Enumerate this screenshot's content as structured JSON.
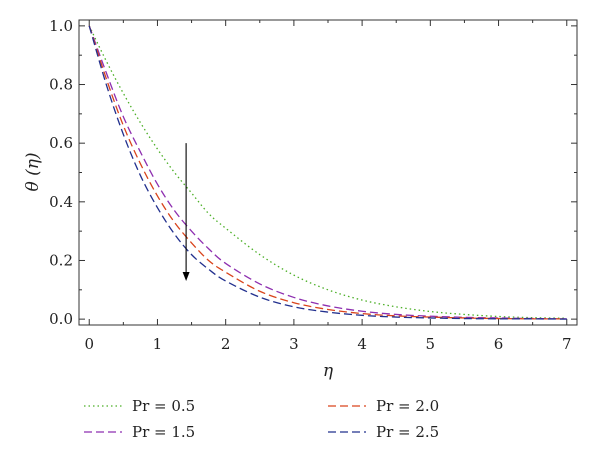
{
  "chart_data": {
    "type": "line",
    "xlabel": "η",
    "ylabel": "θ (η)",
    "xlim": [
      -0.15,
      7.15
    ],
    "ylim": [
      -0.02,
      1.02
    ],
    "x_ticks": [
      0,
      1,
      2,
      3,
      4,
      5,
      6,
      7
    ],
    "x_tick_labels": [
      "0",
      "1",
      "2",
      "3",
      "4",
      "5",
      "6",
      "7"
    ],
    "y_ticks": [
      0.0,
      0.2,
      0.4,
      0.6,
      0.8,
      1.0
    ],
    "y_tick_labels": [
      "0.0",
      "0.2",
      "0.4",
      "0.6",
      "0.8",
      "1.0"
    ],
    "grid": false,
    "legend_position": "bottom",
    "x": [
      0,
      0.25,
      0.5,
      0.75,
      1.0,
      1.25,
      1.5,
      1.75,
      2.0,
      2.5,
      3.0,
      3.5,
      4.0,
      4.5,
      5.0,
      5.5,
      6.0,
      6.5,
      7.0
    ],
    "series": [
      {
        "name": "Pr = 0.5",
        "color": "#4caf27",
        "dash": "dotted",
        "values": [
          1.0,
          0.88,
          0.77,
          0.67,
          0.58,
          0.5,
          0.43,
          0.36,
          0.31,
          0.22,
          0.15,
          0.1,
          0.065,
          0.042,
          0.026,
          0.016,
          0.009,
          0.005,
          0.003
        ]
      },
      {
        "name": "Pr = 1.5",
        "color": "#8e2fb0",
        "dash": "dashed",
        "values": [
          1.0,
          0.84,
          0.69,
          0.57,
          0.46,
          0.37,
          0.3,
          0.24,
          0.19,
          0.12,
          0.074,
          0.045,
          0.027,
          0.016,
          0.01,
          0.006,
          0.004,
          0.002,
          0.001
        ]
      },
      {
        "name": "Pr = 2.0",
        "color": "#d9441c",
        "dash": "dashed",
        "values": [
          1.0,
          0.82,
          0.66,
          0.53,
          0.42,
          0.33,
          0.26,
          0.2,
          0.16,
          0.095,
          0.056,
          0.033,
          0.019,
          0.011,
          0.007,
          0.004,
          0.002,
          0.001,
          0.001
        ]
      },
      {
        "name": "Pr = 2.5",
        "color": "#22308e",
        "dash": "dashed",
        "values": [
          1.0,
          0.8,
          0.63,
          0.49,
          0.38,
          0.29,
          0.22,
          0.17,
          0.13,
          0.075,
          0.042,
          0.024,
          0.013,
          0.007,
          0.004,
          0.002,
          0.001,
          0.001,
          0.0
        ]
      }
    ],
    "annotation": {
      "type": "arrow",
      "direction": "down",
      "x": 1.42,
      "y_start": 0.6,
      "y_end": 0.13,
      "meaning": "increasing Pr"
    }
  },
  "legend": [
    {
      "label": "Pr = 0.5",
      "color": "#4caf27",
      "dash": "dotted"
    },
    {
      "label": "Pr = 2.0",
      "color": "#d9441c",
      "dash": "dashed"
    },
    {
      "label": "Pr = 1.5",
      "color": "#8e2fb0",
      "dash": "dashed"
    },
    {
      "label": "Pr = 2.5",
      "color": "#22308e",
      "dash": "dashed"
    }
  ]
}
